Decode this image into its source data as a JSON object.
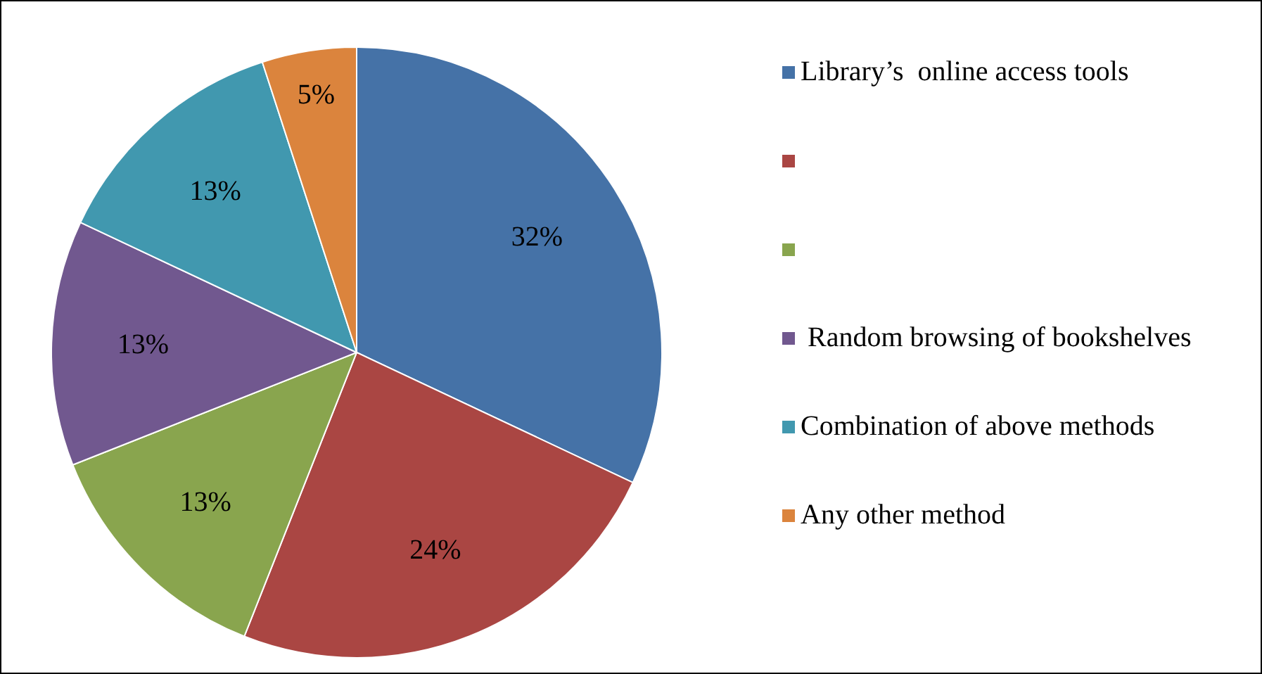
{
  "chart_data": {
    "type": "pie",
    "categories": [
      "Library’s  online access tools",
      null,
      null,
      " Random browsing of bookshelves",
      "Combination of above methods",
      "Any other method"
    ],
    "values": [
      32,
      24,
      13,
      13,
      13,
      5
    ],
    "colors": [
      "#4572a7",
      "#aa4643",
      "#89a54e",
      "#71588f",
      "#4198af",
      "#db843d"
    ],
    "value_labels": [
      "32%",
      "24%",
      "13%",
      "13%",
      "13%",
      "5%"
    ],
    "legend": "right"
  }
}
